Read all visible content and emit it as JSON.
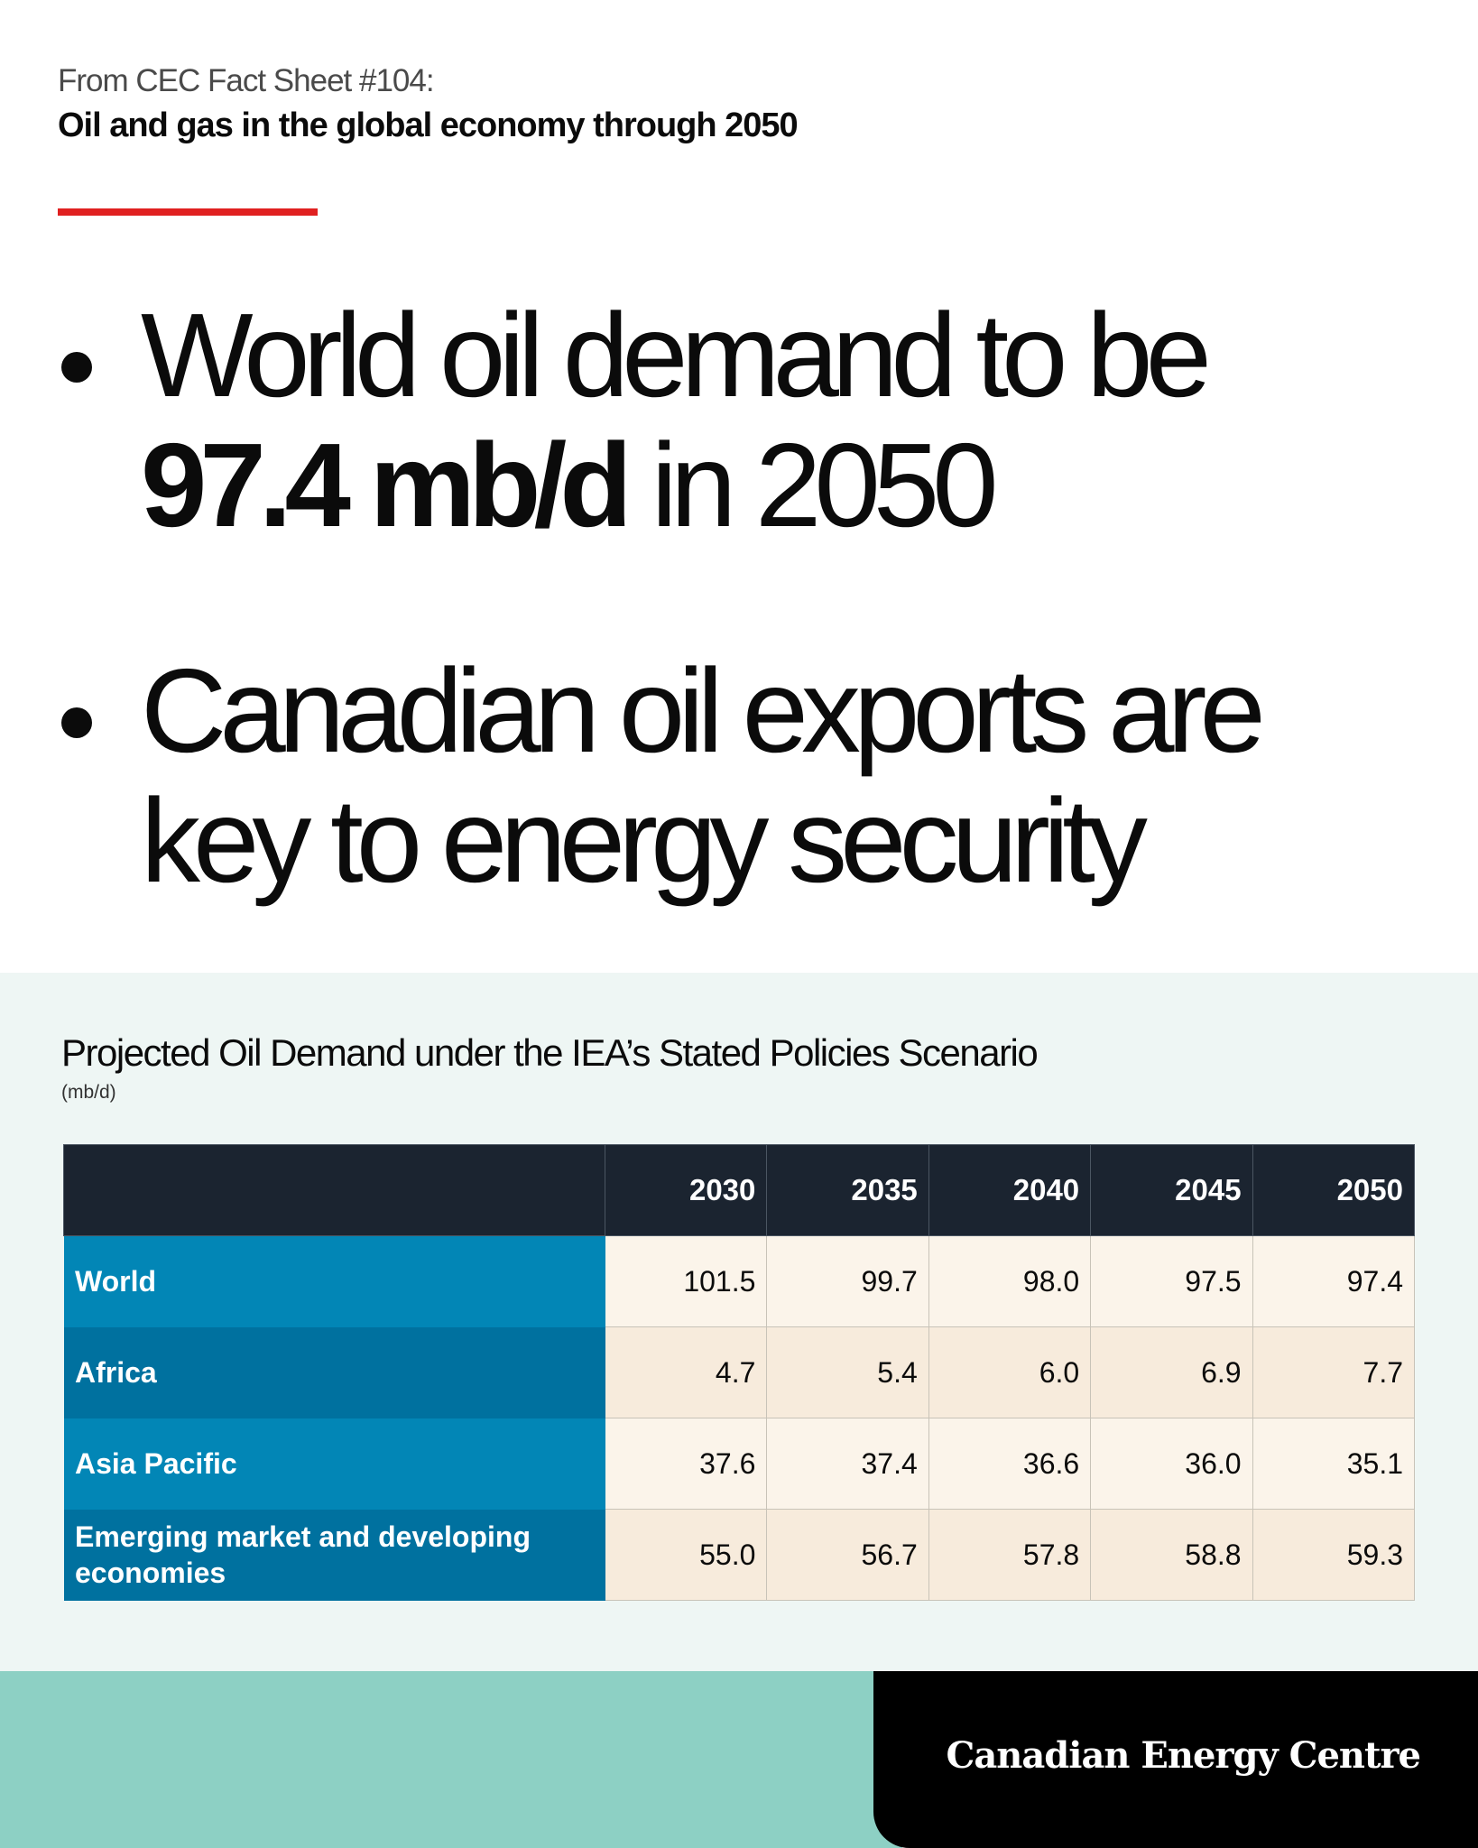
{
  "header": {
    "kicker": "From CEC Fact Sheet #104:",
    "subtitle": "Oil and gas in the global economy through 2050"
  },
  "bullets": [
    {
      "lead": "World oil demand to be",
      "bold": "97.4 mb/d",
      "tail": " in 2050"
    },
    {
      "line1": "Canadian oil exports are",
      "line2": "key to energy security"
    }
  ],
  "table": {
    "title": "Projected Oil Demand under the IEA’s Stated Policies Scenario",
    "unit": "(mb/d)",
    "columns": [
      "2030",
      "2035",
      "2040",
      "2045",
      "2050"
    ],
    "rows": [
      {
        "label": "World",
        "values": [
          "101.5",
          "99.7",
          "98.0",
          "97.5",
          "97.4"
        ]
      },
      {
        "label": "Africa",
        "values": [
          "4.7",
          "5.4",
          "6.0",
          "6.9",
          "7.7"
        ]
      },
      {
        "label": "Asia Pacific",
        "values": [
          "37.6",
          "37.4",
          "36.6",
          "36.0",
          "35.1"
        ]
      },
      {
        "label": "Emerging market and developing economies",
        "values": [
          "55.0",
          "56.7",
          "57.8",
          "58.8",
          "59.3"
        ]
      }
    ]
  },
  "footer": {
    "brand": "Canadian Energy Centre"
  },
  "colors": {
    "accent_red": "#e02020",
    "header_dark": "#1b2430",
    "row_blue": "#0286b6",
    "row_blue_dark": "#00719f",
    "footer_teal": "#8dd0c4"
  }
}
